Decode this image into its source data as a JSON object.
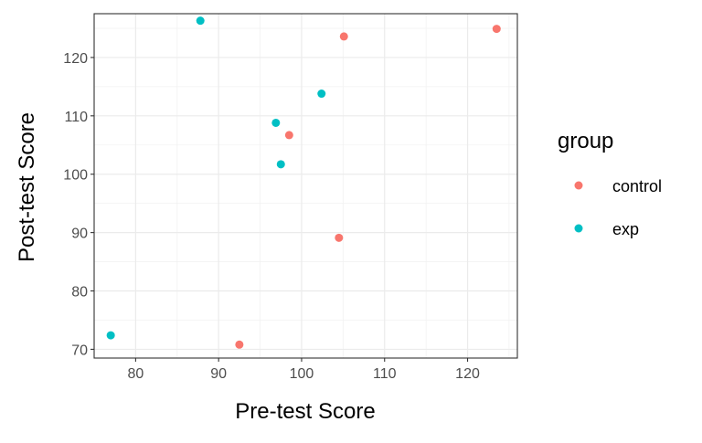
{
  "chart_data": {
    "type": "scatter",
    "title": "",
    "xlabel": "Pre-test Score",
    "ylabel": "Post-test Score",
    "xlim": [
      75,
      126
    ],
    "ylim": [
      68.5,
      127.5
    ],
    "x_ticks": [
      80,
      90,
      100,
      110,
      120
    ],
    "y_ticks": [
      70,
      80,
      90,
      100,
      110,
      120
    ],
    "grid": true,
    "legend": {
      "title": "group",
      "position": "right",
      "entries": [
        {
          "label": "control",
          "color": "#F8766D"
        },
        {
          "label": "exp",
          "color": "#00BFC4"
        }
      ]
    },
    "series": [
      {
        "name": "control",
        "color": "#F8766D",
        "points": [
          {
            "x": 105.1,
            "y": 123.6
          },
          {
            "x": 123.5,
            "y": 124.9
          },
          {
            "x": 98.5,
            "y": 106.7
          },
          {
            "x": 104.5,
            "y": 89.1
          },
          {
            "x": 92.5,
            "y": 70.8
          }
        ]
      },
      {
        "name": "exp",
        "color": "#00BFC4",
        "points": [
          {
            "x": 87.8,
            "y": 126.3
          },
          {
            "x": 102.4,
            "y": 113.8
          },
          {
            "x": 96.9,
            "y": 108.8
          },
          {
            "x": 97.5,
            "y": 101.7
          },
          {
            "x": 77.0,
            "y": 72.4
          }
        ]
      }
    ]
  }
}
